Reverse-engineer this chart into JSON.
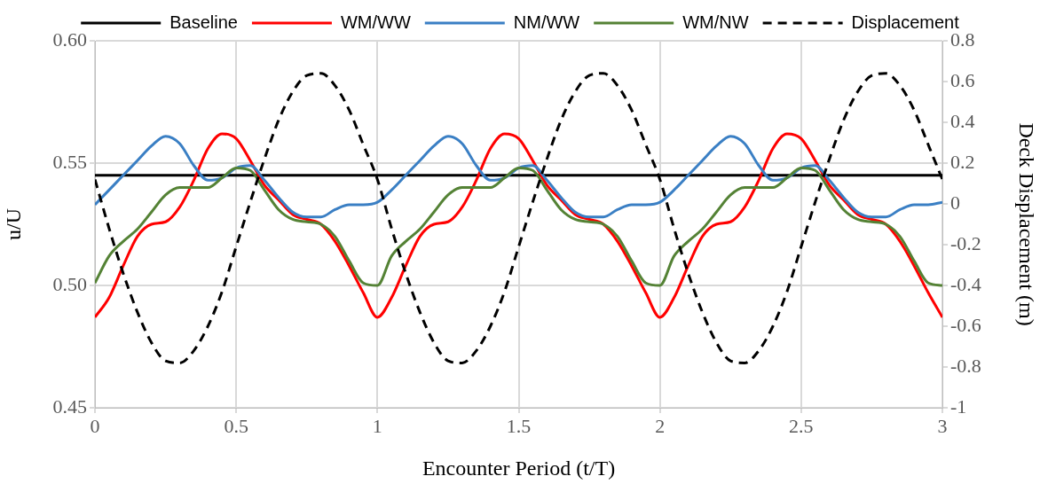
{
  "chart_data": {
    "type": "line",
    "xlabel": "Encounter Period (t/T)",
    "ylabel": "u/U",
    "y2label": "Deck Displacement (m)",
    "x": [
      0,
      0.05,
      0.1,
      0.15,
      0.2,
      0.25,
      0.3,
      0.35,
      0.4,
      0.45,
      0.5,
      0.55,
      0.6,
      0.65,
      0.7,
      0.75,
      0.8,
      0.85,
      0.9,
      0.95,
      1,
      1.05,
      1.1,
      1.15,
      1.2,
      1.25,
      1.3,
      1.35,
      1.4,
      1.45,
      1.5,
      1.55,
      1.6,
      1.65,
      1.7,
      1.75,
      1.8,
      1.85,
      1.9,
      1.95,
      2,
      2.05,
      2.1,
      2.15,
      2.2,
      2.25,
      2.3,
      2.35,
      2.4,
      2.45,
      2.5,
      2.55,
      2.6,
      2.65,
      2.7,
      2.75,
      2.8,
      2.85,
      2.9,
      2.95,
      3
    ],
    "series": [
      {
        "name": "Baseline",
        "color": "#000000",
        "x": [
          0,
          3
        ],
        "values": [
          0.545,
          0.545
        ]
      },
      {
        "name": "WM/WW",
        "color": "#ff0000",
        "values": [
          0.487,
          0.495,
          0.508,
          0.52,
          0.525,
          0.526,
          0.532,
          0.543,
          0.556,
          0.562,
          0.56,
          0.551,
          0.541,
          0.535,
          0.529,
          0.527,
          0.525,
          0.518,
          0.508,
          0.497,
          0.487,
          0.495,
          0.508,
          0.52,
          0.525,
          0.526,
          0.532,
          0.543,
          0.556,
          0.562,
          0.56,
          0.551,
          0.541,
          0.535,
          0.529,
          0.527,
          0.525,
          0.518,
          0.508,
          0.497,
          0.487,
          0.495,
          0.508,
          0.52,
          0.525,
          0.526,
          0.532,
          0.543,
          0.556,
          0.562,
          0.56,
          0.551,
          0.541,
          0.535,
          0.529,
          0.527,
          0.525,
          0.518,
          0.508,
          0.497,
          0.487
        ]
      },
      {
        "name": "NM/WW",
        "color": "#3a7fc4",
        "values": [
          0.533,
          0.539,
          0.545,
          0.551,
          0.557,
          0.561,
          0.558,
          0.549,
          0.543,
          0.544,
          0.548,
          0.549,
          0.543,
          0.536,
          0.53,
          0.528,
          0.528,
          0.531,
          0.533,
          0.533,
          0.534,
          0.539,
          0.545,
          0.551,
          0.557,
          0.561,
          0.558,
          0.549,
          0.543,
          0.544,
          0.548,
          0.549,
          0.543,
          0.536,
          0.53,
          0.528,
          0.528,
          0.531,
          0.533,
          0.533,
          0.534,
          0.539,
          0.545,
          0.551,
          0.557,
          0.561,
          0.558,
          0.549,
          0.543,
          0.544,
          0.548,
          0.549,
          0.543,
          0.536,
          0.53,
          0.528,
          0.528,
          0.531,
          0.533,
          0.533,
          0.534
        ]
      },
      {
        "name": "WM/NW",
        "color": "#548235",
        "values": [
          0.501,
          0.512,
          0.518,
          0.523,
          0.53,
          0.537,
          0.54,
          0.54,
          0.54,
          0.544,
          0.548,
          0.547,
          0.539,
          0.531,
          0.527,
          0.526,
          0.525,
          0.52,
          0.51,
          0.501,
          0.5,
          0.512,
          0.518,
          0.523,
          0.53,
          0.537,
          0.54,
          0.54,
          0.54,
          0.544,
          0.548,
          0.547,
          0.539,
          0.531,
          0.527,
          0.526,
          0.525,
          0.52,
          0.51,
          0.501,
          0.5,
          0.512,
          0.518,
          0.523,
          0.53,
          0.537,
          0.54,
          0.54,
          0.54,
          0.544,
          0.548,
          0.547,
          0.539,
          0.531,
          0.527,
          0.526,
          0.525,
          0.52,
          0.51,
          0.501,
          0.5
        ]
      },
      {
        "name": "Displacement",
        "color": "#000000",
        "axis": "y2",
        "line_style": "dashed",
        "values": [
          0.12,
          -0.12,
          -0.34,
          -0.53,
          -0.68,
          -0.77,
          -0.78,
          -0.72,
          -0.6,
          -0.43,
          -0.21,
          0.01,
          0.22,
          0.41,
          0.55,
          0.63,
          0.64,
          0.58,
          0.46,
          0.29,
          0.12,
          -0.12,
          -0.34,
          -0.53,
          -0.68,
          -0.77,
          -0.78,
          -0.72,
          -0.6,
          -0.43,
          -0.21,
          0.01,
          0.22,
          0.41,
          0.55,
          0.63,
          0.64,
          0.58,
          0.46,
          0.29,
          0.12,
          -0.12,
          -0.34,
          -0.53,
          -0.68,
          -0.77,
          -0.78,
          -0.72,
          -0.6,
          -0.43,
          -0.21,
          0.01,
          0.22,
          0.41,
          0.55,
          0.63,
          0.64,
          0.58,
          0.46,
          0.29,
          0.12
        ]
      }
    ],
    "xlim": [
      0,
      3
    ],
    "xticks": [
      0,
      0.5,
      1,
      1.5,
      2,
      2.5,
      3
    ],
    "ylim": [
      0.45,
      0.6
    ],
    "yticks": [
      0.45,
      {
        "value": 0.5,
        "label": "0.50"
      },
      0.55,
      {
        "value": 0.6,
        "label": "0.60"
      }
    ],
    "y2lim": [
      -1,
      0.8
    ],
    "y2ticks": [
      -1,
      -0.8,
      -0.6,
      -0.4,
      -0.2,
      0,
      0.2,
      0.4,
      0.6,
      0.8
    ],
    "grid": true,
    "legend": "top",
    "marker": "none",
    "line_style": "solid"
  }
}
